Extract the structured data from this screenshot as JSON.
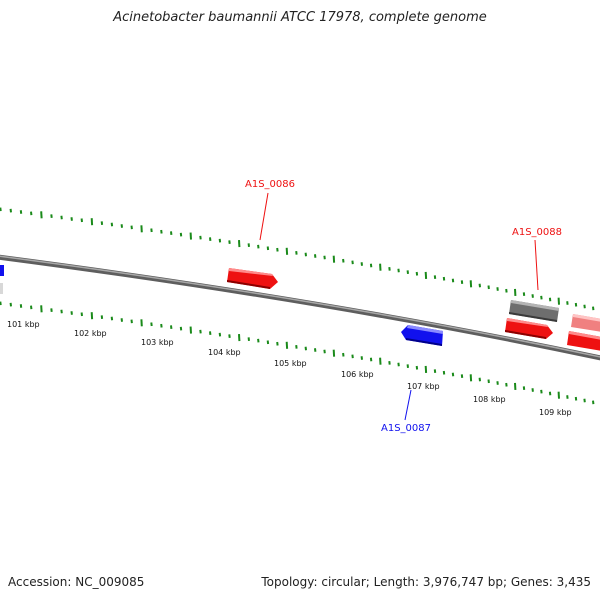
{
  "title": "Acinetobacter baumannii ATCC 17978, complete genome",
  "footer": {
    "accession": "Accession: NC_009085",
    "summary": "Topology: circular; Length: 3,976,747 bp; Genes: 3,435"
  },
  "colors": {
    "forward_gene": "#ee1111",
    "reverse_gene": "#1111ee",
    "tick": "#1a8a1a",
    "backbone": "#7a7a7a",
    "pseudo_gene": "#6e6e6e",
    "faint_gene": "#f08080"
  },
  "map": {
    "kbp_labels": [
      "101 kbp",
      "102 kbp",
      "103 kbp",
      "104 kbp",
      "105 kbp",
      "106 kbp",
      "107 kbp",
      "108 kbp",
      "109 kbp"
    ],
    "gene_labels": [
      {
        "id": "A1S_0086",
        "strand": "forward"
      },
      {
        "id": "A1S_0087",
        "strand": "reverse"
      },
      {
        "id": "A1S_0088",
        "strand": "forward"
      }
    ]
  }
}
